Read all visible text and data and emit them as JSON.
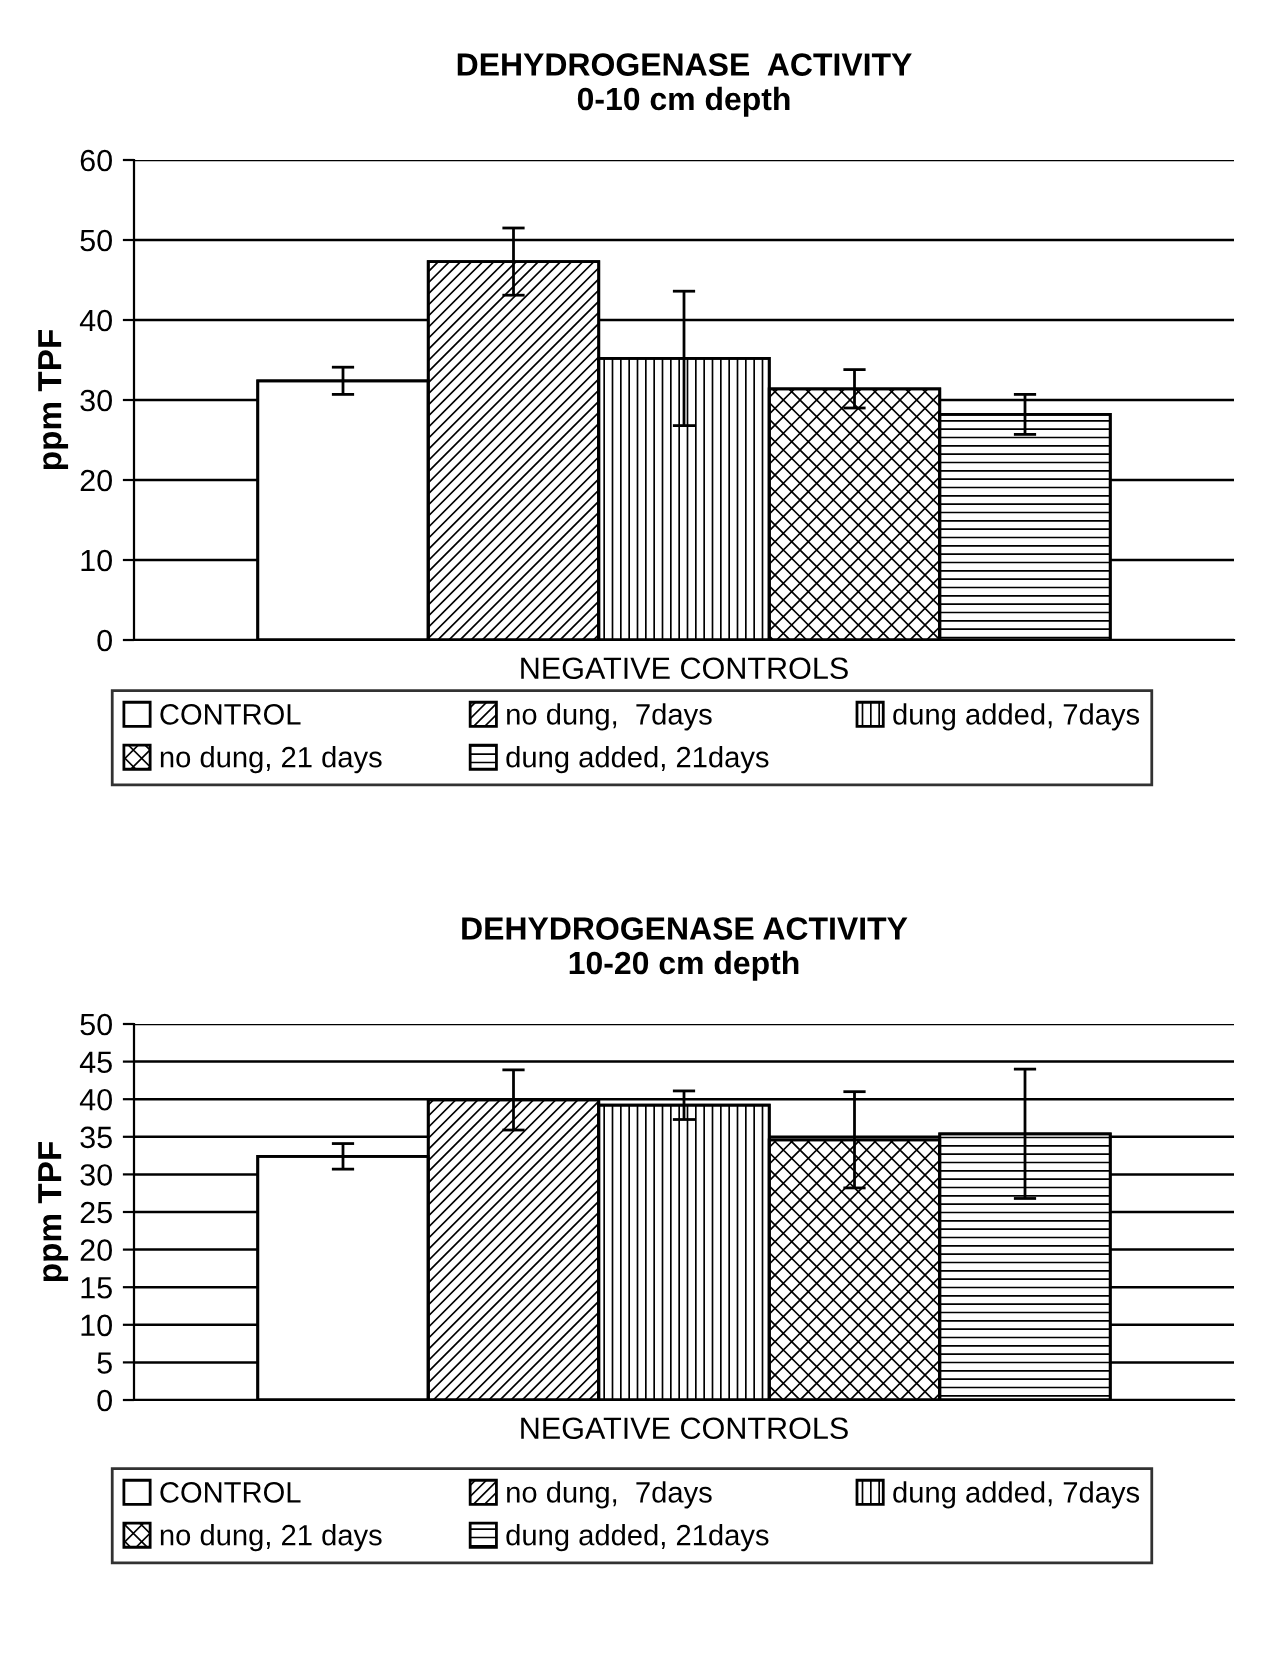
{
  "chart_data": [
    {
      "type": "bar",
      "title": "DEHYDROGENASE  ACTIVITY\n0-10 cm depth",
      "ylabel": "ppm TPF",
      "categories": [
        "NEGATIVE CONTROLS"
      ],
      "ylim": [
        0,
        60
      ],
      "yticks": [
        0,
        10,
        20,
        30,
        40,
        50,
        60
      ],
      "grid": "y",
      "legend": "bottom",
      "series": [
        {
          "name": "CONTROL",
          "color": "#ffffff",
          "values": [
            32.4
          ],
          "errors": [
            1.7
          ]
        },
        {
          "name": "no dung,  7days",
          "color": "#000000",
          "values": [
            47.3
          ],
          "errors": [
            4.2
          ]
        },
        {
          "name": "dung added, 7days",
          "color": "#000000",
          "values": [
            35.2
          ],
          "errors": [
            8.4
          ]
        },
        {
          "name": "no dung, 21 days",
          "color": "#000000",
          "values": [
            31.4
          ],
          "errors": [
            2.4
          ]
        },
        {
          "name": "dung added, 21days",
          "color": "#000000",
          "values": [
            28.2
          ],
          "errors": [
            2.5
          ]
        }
      ]
    },
    {
      "type": "bar",
      "title": "DEHYDROGENASE ACTIVITY\n10-20 cm depth",
      "ylabel": "ppm TPF",
      "categories": [
        "NEGATIVE CONTROLS"
      ],
      "ylim": [
        0,
        50
      ],
      "yticks": [
        0,
        5,
        10,
        15,
        20,
        25,
        30,
        35,
        40,
        45,
        50
      ],
      "grid": "y",
      "legend": "bottom",
      "series": [
        {
          "name": "CONTROL",
          "color": "#ffffff",
          "values": [
            32.4
          ],
          "errors": [
            1.7
          ]
        },
        {
          "name": "no dung,  7days",
          "color": "#000000",
          "values": [
            39.9
          ],
          "errors": [
            4.0
          ]
        },
        {
          "name": "dung added, 7days",
          "color": "#000000",
          "values": [
            39.2
          ],
          "errors": [
            1.9
          ]
        },
        {
          "name": "no dung, 21 days",
          "color": "#000000",
          "values": [
            34.6
          ],
          "errors": [
            6.4
          ]
        },
        {
          "name": "dung added, 21days",
          "color": "#000000",
          "values": [
            35.4
          ],
          "errors": [
            8.6
          ]
        }
      ]
    }
  ]
}
